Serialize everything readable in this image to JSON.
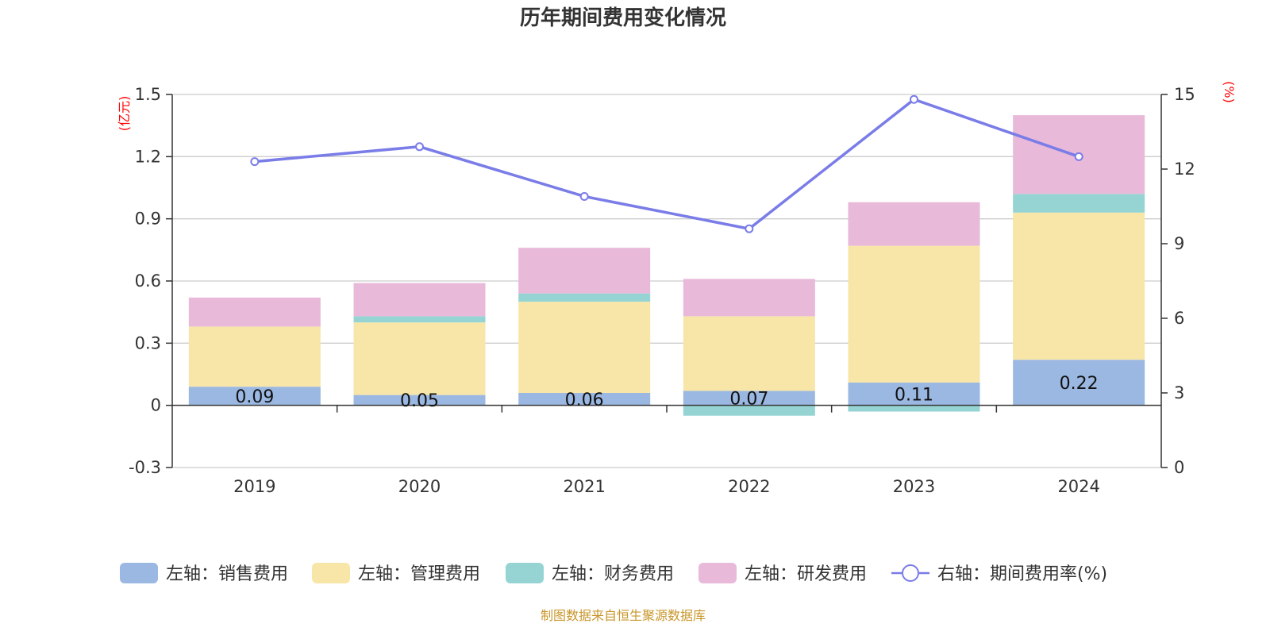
{
  "chart_data": {
    "type": "bar",
    "title": "历年期间费用变化情况",
    "categories": [
      "2019",
      "2020",
      "2021",
      "2022",
      "2023",
      "2024"
    ],
    "left_axis": {
      "unit": "(亿元)",
      "min": -0.3,
      "max": 1.5,
      "ticks": [
        "-0.3",
        "0",
        "0.3",
        "0.6",
        "0.9",
        "1.2",
        "1.5"
      ]
    },
    "right_axis": {
      "unit": "(%)",
      "min": 0,
      "max": 15,
      "ticks": [
        "0",
        "3",
        "6",
        "9",
        "12",
        "15"
      ]
    },
    "series": [
      {
        "name": "左轴：销售费用",
        "type": "bar",
        "stack": true,
        "color": "#9bb8e3",
        "values": [
          0.09,
          0.05,
          0.06,
          0.07,
          0.11,
          0.22
        ],
        "labels": [
          "0.09",
          "0.05",
          "0.06",
          "0.07",
          "0.11",
          "0.22"
        ]
      },
      {
        "name": "左轴：管理费用",
        "type": "bar",
        "stack": true,
        "color": "#f8e6a8",
        "values": [
          0.29,
          0.35,
          0.44,
          0.36,
          0.66,
          0.71
        ]
      },
      {
        "name": "左轴：财务费用",
        "type": "bar",
        "stack": true,
        "color": "#96d4d4",
        "values": [
          0.0,
          0.03,
          0.04,
          -0.05,
          -0.03,
          0.09
        ]
      },
      {
        "name": "左轴：研发费用",
        "type": "bar",
        "stack": true,
        "color": "#e8b9d9",
        "values": [
          0.14,
          0.16,
          0.22,
          0.18,
          0.21,
          0.38
        ]
      },
      {
        "name": "右轴：期间费用率(%)",
        "type": "line",
        "axis": "right",
        "color": "#7a7ce8",
        "values": [
          12.3,
          12.9,
          10.9,
          9.6,
          14.8,
          12.5
        ]
      }
    ],
    "grid": true,
    "legend": "bottom"
  },
  "source_note": "制图数据来自恒生聚源数据库"
}
